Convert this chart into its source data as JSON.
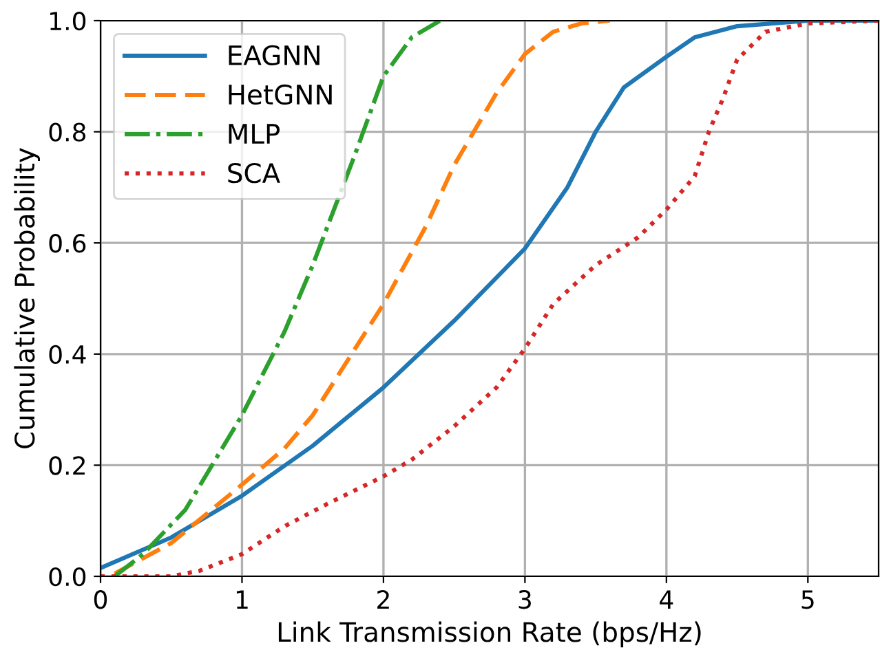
{
  "chart_data": {
    "type": "line",
    "xlabel": "Link Transmission Rate (bps/Hz)",
    "ylabel": "Cumulative Probability",
    "xlim": [
      0,
      5.5
    ],
    "ylim": [
      0,
      1.0
    ],
    "xticks": [
      0,
      1,
      2,
      3,
      4,
      5
    ],
    "yticks": [
      {
        "value": 0,
        "label": "0.0"
      },
      {
        "value": 0.2,
        "label": "0.2"
      },
      {
        "value": 0.4,
        "label": "0.4"
      },
      {
        "value": 0.6,
        "label": "0.6"
      },
      {
        "value": 0.8,
        "label": "0.8"
      },
      {
        "value": 1,
        "label": "1.0"
      }
    ],
    "grid": true,
    "legend": "top left",
    "series": [
      {
        "name": "EAGNN",
        "color": "#1f77b4",
        "line_style": "solid",
        "x": [
          0,
          0.5,
          1,
          1.5,
          2,
          2.5,
          3,
          3.3,
          3.5,
          3.7,
          4,
          4.2,
          4.5,
          5,
          5.5
        ],
        "values": [
          0.015,
          0.07,
          0.145,
          0.235,
          0.34,
          0.46,
          0.59,
          0.7,
          0.8,
          0.88,
          0.935,
          0.97,
          0.99,
          1.0,
          1.0
        ]
      },
      {
        "name": "HetGNN",
        "color": "#ff7f0e",
        "line_style": "dashed",
        "x": [
          0.1,
          0.5,
          1,
          1.3,
          1.5,
          2,
          2.3,
          2.5,
          2.8,
          3,
          3.2,
          3.4,
          3.6
        ],
        "values": [
          0.005,
          0.06,
          0.165,
          0.23,
          0.29,
          0.49,
          0.63,
          0.74,
          0.87,
          0.94,
          0.98,
          0.995,
          1.0
        ]
      },
      {
        "name": "MLP",
        "color": "#2ca02c",
        "line_style": "dashdot",
        "x": [
          0.1,
          0.3,
          0.6,
          1,
          1.3,
          1.5,
          1.8,
          2,
          2.2,
          2.4
        ],
        "values": [
          0.0,
          0.04,
          0.12,
          0.29,
          0.44,
          0.56,
          0.76,
          0.9,
          0.97,
          1.0
        ]
      },
      {
        "name": "SCA",
        "color": "#d62728",
        "line_style": "dotted",
        "x": [
          0,
          0.5,
          0.7,
          1,
          1.3,
          1.6,
          2,
          2.2,
          2.5,
          2.8,
          3,
          3.2,
          3.5,
          3.8,
          4,
          4.2,
          4.3,
          4.4,
          4.5,
          4.7,
          5,
          5.5
        ],
        "values": [
          0,
          0,
          0.01,
          0.04,
          0.09,
          0.13,
          0.18,
          0.21,
          0.27,
          0.34,
          0.41,
          0.49,
          0.56,
          0.61,
          0.66,
          0.72,
          0.8,
          0.86,
          0.93,
          0.98,
          0.995,
          1.0
        ]
      }
    ]
  }
}
